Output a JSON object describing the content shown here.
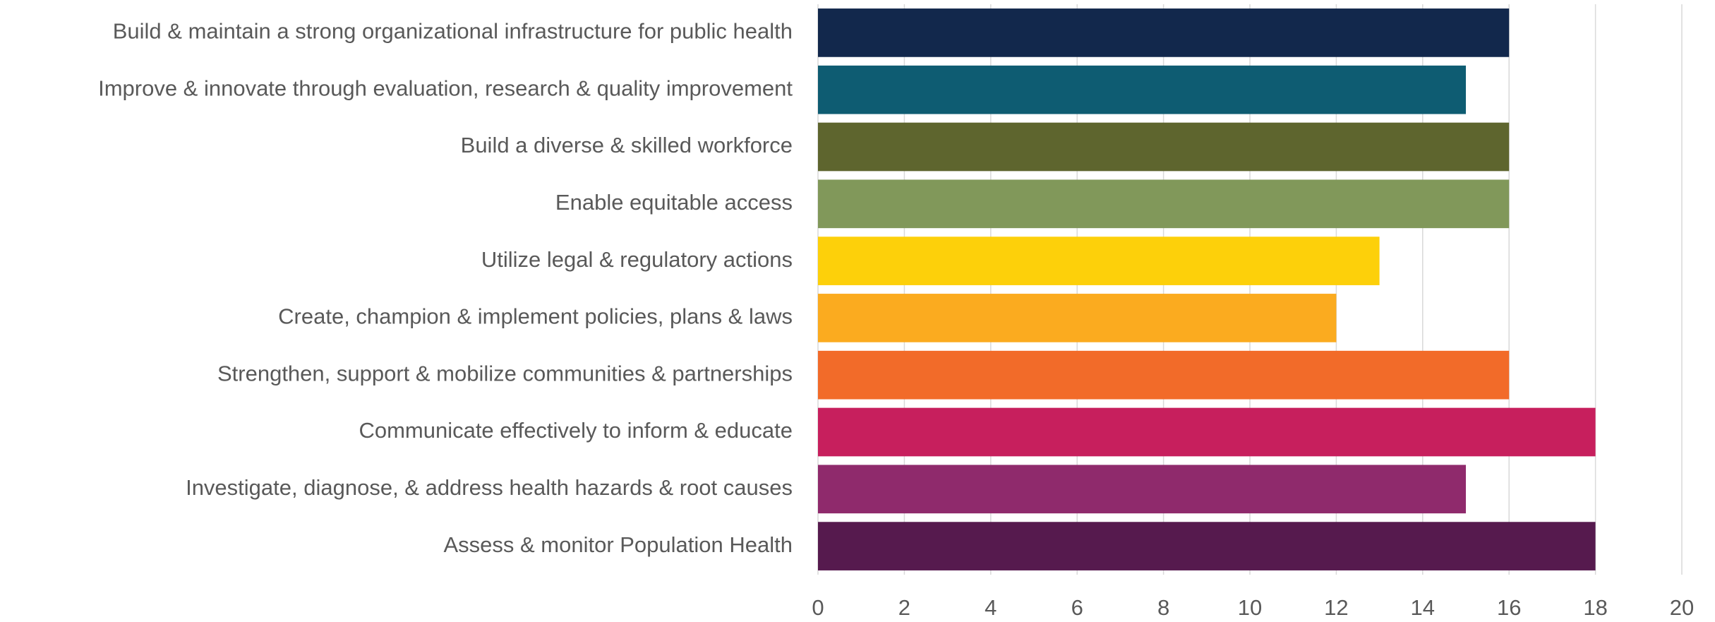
{
  "chart_data": {
    "type": "barh",
    "categories": [
      "Build & maintain a strong organizational infrastructure for public health",
      "Improve & innovate through evaluation, research & quality improvement",
      "Build a diverse & skilled workforce",
      "Enable equitable access",
      "Utilize legal & regulatory actions",
      "Create, champion & implement policies, plans & laws",
      "Strengthen, support & mobilize communities & partnerships",
      "Communicate effectively to inform & educate",
      "Investigate, diagnose, & address health hazards & root causes",
      "Assess & monitor Population Health"
    ],
    "values": [
      16,
      15,
      16,
      16,
      13,
      12,
      16,
      18,
      15,
      18
    ],
    "colors": [
      "#12284c",
      "#0e5c72",
      "#5e652e",
      "#81985a",
      "#fdd00a",
      "#fbab1f",
      "#f26b29",
      "#c71f5d",
      "#8f2a6c",
      "#561a4e"
    ],
    "xlim": [
      0,
      20
    ],
    "xticks": [
      0,
      2,
      4,
      6,
      8,
      10,
      12,
      14,
      16,
      18,
      20
    ],
    "grid": true
  }
}
